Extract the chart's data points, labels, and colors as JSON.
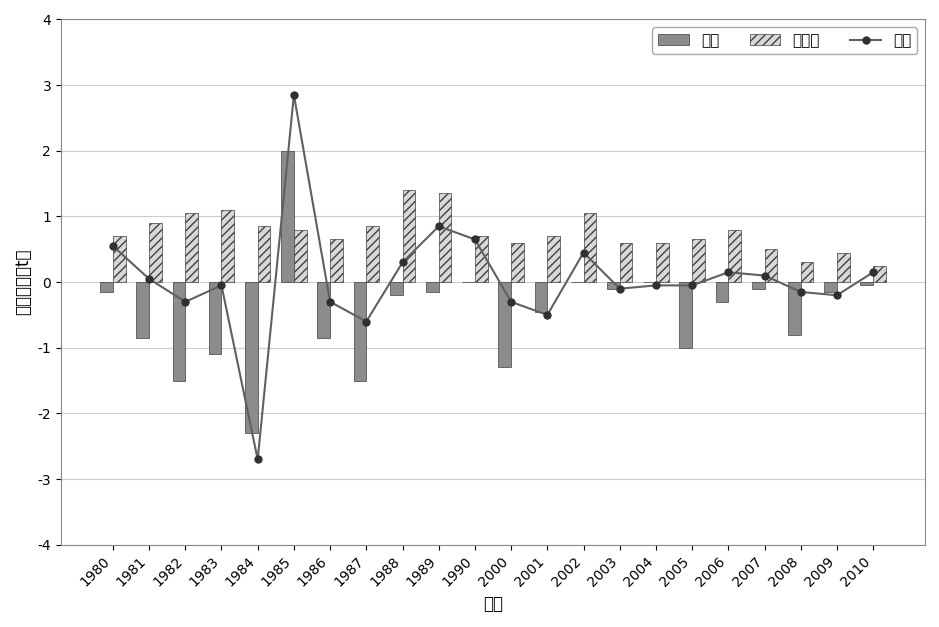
{
  "years": [
    "1980",
    "1981",
    "1982",
    "1983",
    "1984",
    "1985",
    "1986",
    "1987",
    "1988",
    "1989",
    "1990",
    "2000",
    "2001",
    "2002",
    "2003",
    "2004",
    "2005",
    "2006",
    "2007",
    "2008",
    "2009",
    "2010"
  ],
  "flood_season": [
    -0.15,
    -0.85,
    -1.5,
    -1.1,
    -2.3,
    2.0,
    -0.85,
    -1.5,
    -0.2,
    -0.15,
    0.0,
    -1.3,
    -0.45,
    0.0,
    -0.1,
    0.0,
    -1.0,
    -0.3,
    -0.1,
    -0.8,
    -0.15,
    -0.05
  ],
  "non_flood_season": [
    0.7,
    0.9,
    1.05,
    1.1,
    0.85,
    0.8,
    0.65,
    0.85,
    1.4,
    1.35,
    0.7,
    0.6,
    0.7,
    1.05,
    0.6,
    0.6,
    0.65,
    0.8,
    0.5,
    0.3,
    0.45,
    0.25
  ],
  "annual": [
    0.55,
    0.05,
    -0.3,
    -0.05,
    -2.7,
    2.85,
    -0.3,
    -0.6,
    0.3,
    0.85,
    0.65,
    -0.3,
    -0.5,
    0.45,
    -0.1,
    -0.05,
    -0.05,
    0.15,
    0.1,
    -0.15,
    -0.2,
    0.15
  ],
  "bar_color_flood": "#8c8c8c",
  "line_color": "#606060",
  "ylim": [
    -4,
    4
  ],
  "yticks": [
    -4,
    -3,
    -2,
    -1,
    0,
    1,
    2,
    3,
    4
  ],
  "xlabel": "年份",
  "ylabel": "冲淤量（亿t）",
  "legend_flood": "汛期",
  "legend_non_flood": "非汛期",
  "legend_annual": "全年",
  "label_fontsize": 12,
  "tick_fontsize": 10,
  "legend_fontsize": 11,
  "bar_width": 0.35
}
